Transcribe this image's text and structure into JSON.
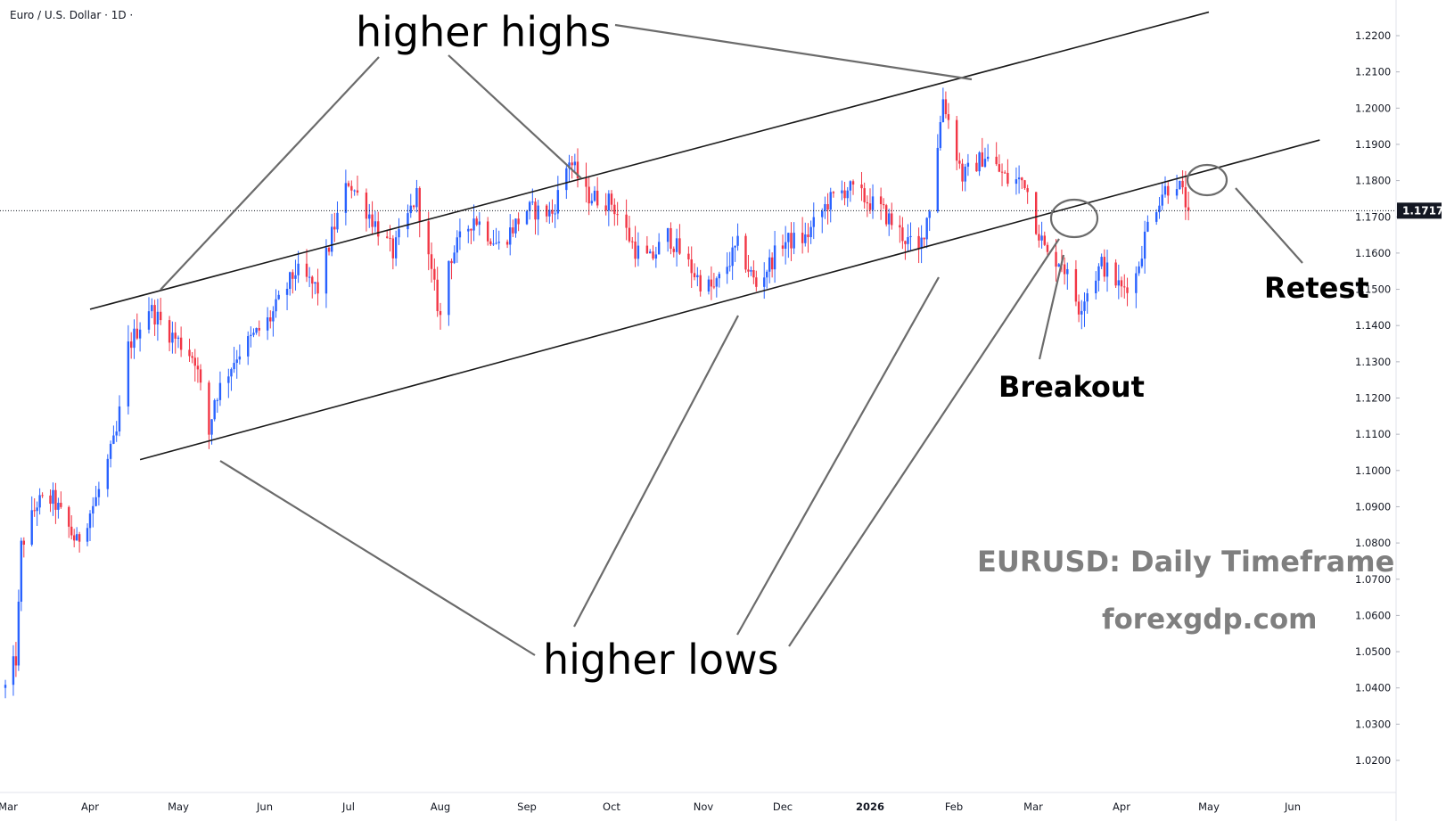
{
  "header": {
    "symbol_label": "Euro / U.S. Dollar · 1D ·"
  },
  "colors": {
    "up": "#2962ff",
    "down": "#f23645",
    "trendline": "#1a1a1a",
    "pointer": "#6b6b6b",
    "price_tag_bg": "#131722",
    "grid_axis": "#e0e3eb"
  },
  "annotations": {
    "higher_highs": "higher highs",
    "higher_lows": "higher lows",
    "breakout": "Breakout",
    "retest": "Retest"
  },
  "watermark": {
    "title": "EURUSD: Daily Timeframe",
    "site": "forexgdp.com"
  },
  "chart_data": {
    "type": "candlestick",
    "title": "Euro / U.S. Dollar · 1D ·",
    "xlabel": "",
    "ylabel": "",
    "ylim": [
      1.02,
      1.23
    ],
    "grid": false,
    "last_price": "1.1717",
    "y_ticks": [
      "1.2200",
      "1.2100",
      "1.2000",
      "1.1900",
      "1.1800",
      "1.1700",
      "1.1600",
      "1.1500",
      "1.1400",
      "1.1300",
      "1.1200",
      "1.1100",
      "1.1000",
      "1.0900",
      "1.0800",
      "1.0700",
      "1.0600",
      "1.0500",
      "1.0400",
      "1.0300",
      "1.0200"
    ],
    "x_ticks": [
      {
        "label": "Mar",
        "year": false
      },
      {
        "label": "Apr",
        "year": false
      },
      {
        "label": "May",
        "year": false
      },
      {
        "label": "Jun",
        "year": false
      },
      {
        "label": "Jul",
        "year": false
      },
      {
        "label": "Aug",
        "year": false
      },
      {
        "label": "Sep",
        "year": false
      },
      {
        "label": "Oct",
        "year": false
      },
      {
        "label": "Nov",
        "year": false
      },
      {
        "label": "Dec",
        "year": false
      },
      {
        "label": "2026",
        "year": true
      },
      {
        "label": "Feb",
        "year": false
      },
      {
        "label": "Mar",
        "year": false
      },
      {
        "label": "Apr",
        "year": false
      },
      {
        "label": "May",
        "year": false
      },
      {
        "label": "Jun",
        "year": false
      }
    ],
    "x_tick_dates": [
      "2025-03-01",
      "2025-04-01",
      "2025-05-01",
      "2025-06-01",
      "2025-07-01",
      "2025-08-01",
      "2025-09-01",
      "2025-10-01",
      "2025-11-01",
      "2025-12-01",
      "2026-01-01",
      "2026-02-01",
      "2026-03-01",
      "2026-04-01",
      "2026-05-01",
      "2026-06-01"
    ],
    "anchors": [
      {
        "date": "2025-02-28",
        "price": 1.04
      },
      {
        "date": "2025-03-04",
        "price": 1.048
      },
      {
        "date": "2025-03-05",
        "price": 1.062
      },
      {
        "date": "2025-03-06",
        "price": 1.079
      },
      {
        "date": "2025-03-12",
        "price": 1.091
      },
      {
        "date": "2025-03-18",
        "price": 1.092
      },
      {
        "date": "2025-03-27",
        "price": 1.08
      },
      {
        "date": "2025-04-03",
        "price": 1.092
      },
      {
        "date": "2025-04-10",
        "price": 1.11
      },
      {
        "date": "2025-04-14",
        "price": 1.134
      },
      {
        "date": "2025-04-21",
        "price": 1.145
      },
      {
        "date": "2025-04-28",
        "price": 1.138
      },
      {
        "date": "2025-05-07",
        "price": 1.131
      },
      {
        "date": "2025-05-12",
        "price": 1.11
      },
      {
        "date": "2025-05-14",
        "price": 1.12
      },
      {
        "date": "2025-05-22",
        "price": 1.132
      },
      {
        "date": "2025-06-03",
        "price": 1.142
      },
      {
        "date": "2025-06-12",
        "price": 1.155
      },
      {
        "date": "2025-06-20",
        "price": 1.15
      },
      {
        "date": "2025-06-25",
        "price": 1.165
      },
      {
        "date": "2025-07-01",
        "price": 1.18
      },
      {
        "date": "2025-07-07",
        "price": 1.172
      },
      {
        "date": "2025-07-16",
        "price": 1.16
      },
      {
        "date": "2025-07-24",
        "price": 1.176
      },
      {
        "date": "2025-07-28",
        "price": 1.158
      },
      {
        "date": "2025-08-01",
        "price": 1.142
      },
      {
        "date": "2025-08-04",
        "price": 1.158
      },
      {
        "date": "2025-08-13",
        "price": 1.17
      },
      {
        "date": "2025-08-22",
        "price": 1.162
      },
      {
        "date": "2025-09-01",
        "price": 1.172
      },
      {
        "date": "2025-09-10",
        "price": 1.171
      },
      {
        "date": "2025-09-16",
        "price": 1.186
      },
      {
        "date": "2025-09-22",
        "price": 1.176
      },
      {
        "date": "2025-10-01",
        "price": 1.174
      },
      {
        "date": "2025-10-09",
        "price": 1.161
      },
      {
        "date": "2025-10-14",
        "price": 1.158
      },
      {
        "date": "2025-10-20",
        "price": 1.165
      },
      {
        "date": "2025-10-31",
        "price": 1.152
      },
      {
        "date": "2025-11-05",
        "price": 1.15
      },
      {
        "date": "2025-11-14",
        "price": 1.162
      },
      {
        "date": "2025-11-21",
        "price": 1.151
      },
      {
        "date": "2025-12-01",
        "price": 1.163
      },
      {
        "date": "2025-12-09",
        "price": 1.164
      },
      {
        "date": "2025-12-17",
        "price": 1.174
      },
      {
        "date": "2025-12-24",
        "price": 1.178
      },
      {
        "date": "2026-01-05",
        "price": 1.172
      },
      {
        "date": "2026-01-14",
        "price": 1.164
      },
      {
        "date": "2026-01-19",
        "price": 1.16
      },
      {
        "date": "2026-01-23",
        "price": 1.173
      },
      {
        "date": "2026-01-27",
        "price": 1.196
      },
      {
        "date": "2026-01-28",
        "price": 1.203
      },
      {
        "date": "2026-02-04",
        "price": 1.181
      },
      {
        "date": "2026-02-12",
        "price": 1.187
      },
      {
        "date": "2026-02-20",
        "price": 1.18
      },
      {
        "date": "2026-02-26",
        "price": 1.18
      },
      {
        "date": "2026-03-02",
        "price": 1.168
      },
      {
        "date": "2026-03-06",
        "price": 1.159
      },
      {
        "date": "2026-03-11",
        "price": 1.158
      },
      {
        "date": "2026-03-17",
        "price": 1.145
      },
      {
        "date": "2026-03-25",
        "price": 1.157
      },
      {
        "date": "2026-04-01",
        "price": 1.15
      },
      {
        "date": "2026-04-06",
        "price": 1.154
      },
      {
        "date": "2026-04-10",
        "price": 1.168
      },
      {
        "date": "2026-04-15",
        "price": 1.177
      },
      {
        "date": "2026-04-20",
        "price": 1.18
      },
      {
        "date": "2026-04-24",
        "price": 1.172
      }
    ],
    "trendlines": [
      {
        "name": "upper-channel-line",
        "from": {
          "date": "2025-04-01",
          "price": 1.1445
        },
        "to": {
          "date": "2026-05-01",
          "price": 1.2265
        }
      },
      {
        "name": "lower-channel-line",
        "from": {
          "date": "2025-04-18",
          "price": 1.103
        },
        "to": {
          "date": "2026-06-11",
          "price": 1.1912
        }
      }
    ]
  }
}
